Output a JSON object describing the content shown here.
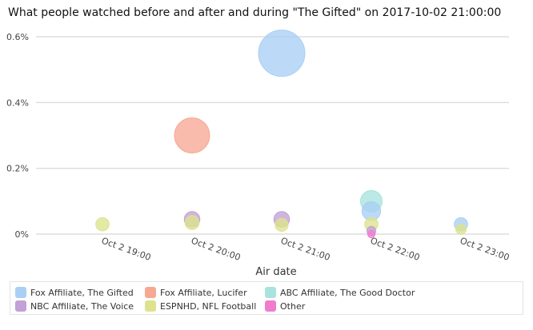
{
  "chart_data": {
    "type": "scatter",
    "title": "What people watched before and after and during \"The Gifted\" on 2017-10-02 21:00:00",
    "xlabel": "Air date",
    "ylabel": "",
    "x_ticks": [
      "Oct 2 19:00",
      "Oct 2 20:00",
      "Oct 2 21:00",
      "Oct 2 22:00",
      "Oct 2 23:00"
    ],
    "y_ticks": [
      "0%",
      "0.2%",
      "0.4%",
      "0.6%"
    ],
    "ylim": [
      0,
      0.6
    ],
    "grid": true,
    "legend_placement": "bottom",
    "series": [
      {
        "name": "Fox Affiliate, The Gifted",
        "color": "#a9cff5",
        "points": [
          {
            "x": "Oct 2 21:00",
            "y": 0.55,
            "size": 0.55
          },
          {
            "x": "Oct 2 22:00",
            "y": 0.07,
            "size": 0.07
          },
          {
            "x": "Oct 2 23:00",
            "y": 0.03,
            "size": 0.03
          }
        ]
      },
      {
        "name": "Fox Affiliate, Lucifer",
        "color": "#f7a893",
        "points": [
          {
            "x": "Oct 2 20:00",
            "y": 0.3,
            "size": 0.3
          }
        ]
      },
      {
        "name": "ABC Affiliate, The Good Doctor",
        "color": "#a8e3de",
        "points": [
          {
            "x": "Oct 2 22:00",
            "y": 0.1,
            "size": 0.1
          }
        ]
      },
      {
        "name": "NBC Affiliate, The Voice",
        "color": "#c3a0d6",
        "points": [
          {
            "x": "Oct 2 20:00",
            "y": 0.045,
            "size": 0.045
          },
          {
            "x": "Oct 2 21:00",
            "y": 0.045,
            "size": 0.045
          },
          {
            "x": "Oct 2 22:00",
            "y": 0.01,
            "size": 0.01
          }
        ]
      },
      {
        "name": "ESPNHD, NFL Football",
        "color": "#dde38c",
        "points": [
          {
            "x": "Oct 2 19:00",
            "y": 0.03,
            "size": 0.03
          },
          {
            "x": "Oct 2 20:00",
            "y": 0.035,
            "size": 0.035
          },
          {
            "x": "Oct 2 21:00",
            "y": 0.028,
            "size": 0.028
          },
          {
            "x": "Oct 2 22:00",
            "y": 0.03,
            "size": 0.03
          },
          {
            "x": "Oct 2 23:00",
            "y": 0.015,
            "size": 0.015
          }
        ]
      },
      {
        "name": "Other",
        "color": "#f07ccf",
        "points": [
          {
            "x": "Oct 2 22:00",
            "y": 0.0,
            "size": 0.005
          }
        ]
      }
    ]
  }
}
